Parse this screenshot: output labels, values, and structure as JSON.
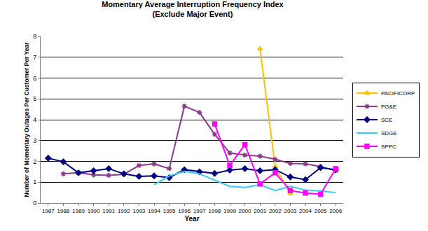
{
  "chart_data": {
    "type": "line",
    "title": "Momentary Average Interruption Frequency Index",
    "subtitle": "(Exclude Major Event)",
    "x_label": "Year",
    "y_label": "Number of Momentary Outages Per Customer Per Year",
    "categories": [
      "1987",
      "1988",
      "1989",
      "1990",
      "1991",
      "1992",
      "1993",
      "1994",
      "1995",
      "1996",
      "1997",
      "1998",
      "1999",
      "2000",
      "2001",
      "2002",
      "2003",
      "2004",
      "2005",
      "2006"
    ],
    "series": [
      {
        "name": "PACIFICORP",
        "color": "#FFC000",
        "marker": "triangle",
        "values": [
          null,
          null,
          null,
          null,
          null,
          null,
          null,
          null,
          null,
          null,
          null,
          null,
          null,
          null,
          7.4,
          1.75,
          0.45,
          null,
          null,
          null
        ]
      },
      {
        "name": "PG&E",
        "color": "#8B3A8B",
        "marker": "x",
        "values": [
          null,
          1.4,
          1.45,
          1.35,
          1.33,
          1.38,
          1.8,
          1.88,
          1.65,
          4.65,
          4.35,
          3.3,
          2.4,
          2.3,
          2.25,
          2.1,
          1.9,
          1.88,
          1.75,
          1.55
        ]
      },
      {
        "name": "SCE",
        "color": "#000080",
        "marker": "diamond",
        "values": [
          2.15,
          1.98,
          1.45,
          1.55,
          1.65,
          1.4,
          1.28,
          1.3,
          1.22,
          1.6,
          1.5,
          1.42,
          1.58,
          1.65,
          1.55,
          1.6,
          1.25,
          1.12,
          1.7,
          1.6
        ]
      },
      {
        "name": "SDGE",
        "color": "#33CCFF",
        "marker": "none",
        "values": [
          null,
          null,
          null,
          null,
          null,
          null,
          null,
          0.88,
          1.3,
          1.52,
          1.4,
          1.1,
          0.8,
          0.75,
          0.88,
          0.6,
          0.8,
          0.62,
          0.58,
          0.5
        ]
      },
      {
        "name": "SPPC",
        "color": "#FF00FF",
        "marker": "square",
        "values": [
          null,
          null,
          null,
          null,
          null,
          null,
          null,
          null,
          null,
          null,
          null,
          3.8,
          1.8,
          2.8,
          0.92,
          1.45,
          0.6,
          0.48,
          0.42,
          1.65
        ]
      }
    ],
    "ylim": [
      0,
      8
    ],
    "yticks": [
      0,
      1,
      2,
      3,
      4,
      5,
      6,
      7,
      8
    ],
    "grid": true,
    "legend": "right"
  }
}
